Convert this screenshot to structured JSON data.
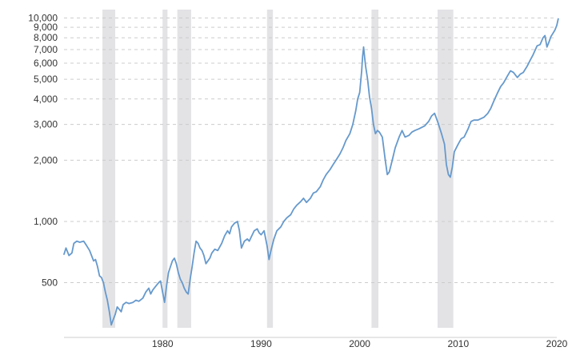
{
  "chart_data": {
    "type": "line",
    "title": "",
    "xlabel": "",
    "ylabel": "",
    "y_scale": "log",
    "xlim": [
      1970,
      2020
    ],
    "ylim": [
      300,
      11000
    ],
    "grid": true,
    "colors": {
      "line": "#6699cc",
      "recession": "#e3e3e6",
      "grid": "#cccccc",
      "axis": "#cccccc",
      "text": "#333333"
    },
    "y_ticks": [
      {
        "value": 500,
        "label": "500"
      },
      {
        "value": 1000,
        "label": "1,000"
      },
      {
        "value": 2000,
        "label": "2,000"
      },
      {
        "value": 3000,
        "label": "3,000"
      },
      {
        "value": 4000,
        "label": "4,000"
      },
      {
        "value": 5000,
        "label": "5,000"
      },
      {
        "value": 6000,
        "label": "6,000"
      },
      {
        "value": 7000,
        "label": "7,000"
      },
      {
        "value": 8000,
        "label": "8,000"
      },
      {
        "value": 9000,
        "label": "9,000"
      },
      {
        "value": 10000,
        "label": "10,000"
      }
    ],
    "x_ticks": [
      {
        "value": 1980,
        "label": "1980"
      },
      {
        "value": 1990,
        "label": "1990"
      },
      {
        "value": 2000,
        "label": "2000"
      },
      {
        "value": 2010,
        "label": "2010"
      },
      {
        "value": 2020,
        "label": "2020"
      }
    ],
    "recessions": [
      [
        1973.9,
        1975.2
      ],
      [
        1980.0,
        1980.5
      ],
      [
        1981.5,
        1982.9
      ],
      [
        1990.6,
        1991.2
      ],
      [
        2001.2,
        2001.9
      ],
      [
        2007.9,
        2009.5
      ]
    ],
    "series": [
      {
        "points": [
          [
            1970.0,
            690
          ],
          [
            1970.2,
            740
          ],
          [
            1970.5,
            680
          ],
          [
            1970.8,
            700
          ],
          [
            1971.0,
            780
          ],
          [
            1971.3,
            800
          ],
          [
            1971.6,
            790
          ],
          [
            1972.0,
            800
          ],
          [
            1972.3,
            760
          ],
          [
            1972.6,
            720
          ],
          [
            1973.0,
            640
          ],
          [
            1973.2,
            650
          ],
          [
            1973.4,
            600
          ],
          [
            1973.6,
            540
          ],
          [
            1973.8,
            530
          ],
          [
            1974.0,
            500
          ],
          [
            1974.2,
            450
          ],
          [
            1974.4,
            410
          ],
          [
            1974.6,
            360
          ],
          [
            1974.8,
            310
          ],
          [
            1975.0,
            330
          ],
          [
            1975.2,
            350
          ],
          [
            1975.4,
            380
          ],
          [
            1975.6,
            370
          ],
          [
            1975.8,
            360
          ],
          [
            1976.0,
            390
          ],
          [
            1976.3,
            400
          ],
          [
            1976.6,
            395
          ],
          [
            1977.0,
            400
          ],
          [
            1977.3,
            410
          ],
          [
            1977.6,
            405
          ],
          [
            1978.0,
            420
          ],
          [
            1978.3,
            450
          ],
          [
            1978.6,
            470
          ],
          [
            1978.8,
            440
          ],
          [
            1979.0,
            460
          ],
          [
            1979.3,
            480
          ],
          [
            1979.6,
            500
          ],
          [
            1979.8,
            510
          ],
          [
            1980.0,
            450
          ],
          [
            1980.2,
            400
          ],
          [
            1980.4,
            480
          ],
          [
            1980.6,
            560
          ],
          [
            1980.8,
            600
          ],
          [
            1981.0,
            640
          ],
          [
            1981.2,
            660
          ],
          [
            1981.4,
            620
          ],
          [
            1981.6,
            560
          ],
          [
            1981.8,
            520
          ],
          [
            1982.0,
            500
          ],
          [
            1982.2,
            470
          ],
          [
            1982.4,
            450
          ],
          [
            1982.6,
            440
          ],
          [
            1982.8,
            520
          ],
          [
            1983.0,
            600
          ],
          [
            1983.2,
            700
          ],
          [
            1983.4,
            800
          ],
          [
            1983.6,
            780
          ],
          [
            1983.8,
            740
          ],
          [
            1984.0,
            720
          ],
          [
            1984.2,
            680
          ],
          [
            1984.4,
            620
          ],
          [
            1984.6,
            640
          ],
          [
            1984.8,
            660
          ],
          [
            1985.0,
            700
          ],
          [
            1985.3,
            730
          ],
          [
            1985.6,
            720
          ],
          [
            1986.0,
            780
          ],
          [
            1986.3,
            850
          ],
          [
            1986.6,
            900
          ],
          [
            1986.8,
            870
          ],
          [
            1987.0,
            940
          ],
          [
            1987.3,
            980
          ],
          [
            1987.6,
            1000
          ],
          [
            1987.8,
            900
          ],
          [
            1988.0,
            740
          ],
          [
            1988.3,
            800
          ],
          [
            1988.6,
            820
          ],
          [
            1988.8,
            800
          ],
          [
            1989.0,
            840
          ],
          [
            1989.3,
            900
          ],
          [
            1989.6,
            920
          ],
          [
            1989.8,
            880
          ],
          [
            1990.0,
            860
          ],
          [
            1990.3,
            900
          ],
          [
            1990.6,
            760
          ],
          [
            1990.8,
            650
          ],
          [
            1991.0,
            720
          ],
          [
            1991.3,
            820
          ],
          [
            1991.6,
            900
          ],
          [
            1991.8,
            920
          ],
          [
            1992.0,
            940
          ],
          [
            1992.3,
            1000
          ],
          [
            1992.6,
            1040
          ],
          [
            1993.0,
            1080
          ],
          [
            1993.3,
            1150
          ],
          [
            1993.6,
            1200
          ],
          [
            1994.0,
            1250
          ],
          [
            1994.3,
            1300
          ],
          [
            1994.6,
            1240
          ],
          [
            1995.0,
            1300
          ],
          [
            1995.3,
            1380
          ],
          [
            1995.6,
            1400
          ],
          [
            1996.0,
            1480
          ],
          [
            1996.3,
            1600
          ],
          [
            1996.6,
            1700
          ],
          [
            1997.0,
            1800
          ],
          [
            1997.3,
            1900
          ],
          [
            1997.6,
            2000
          ],
          [
            1998.0,
            2150
          ],
          [
            1998.3,
            2300
          ],
          [
            1998.6,
            2500
          ],
          [
            1999.0,
            2700
          ],
          [
            1999.3,
            3000
          ],
          [
            1999.6,
            3500
          ],
          [
            1999.8,
            4000
          ],
          [
            2000.0,
            4300
          ],
          [
            2000.2,
            5500
          ],
          [
            2000.3,
            6500
          ],
          [
            2000.4,
            7200
          ],
          [
            2000.5,
            6400
          ],
          [
            2000.6,
            5800
          ],
          [
            2000.8,
            5000
          ],
          [
            2001.0,
            4100
          ],
          [
            2001.2,
            3600
          ],
          [
            2001.4,
            3000
          ],
          [
            2001.6,
            2700
          ],
          [
            2001.8,
            2800
          ],
          [
            2002.0,
            2750
          ],
          [
            2002.3,
            2600
          ],
          [
            2002.6,
            2000
          ],
          [
            2002.8,
            1700
          ],
          [
            2003.0,
            1750
          ],
          [
            2003.3,
            2000
          ],
          [
            2003.6,
            2300
          ],
          [
            2004.0,
            2600
          ],
          [
            2004.3,
            2800
          ],
          [
            2004.6,
            2600
          ],
          [
            2005.0,
            2650
          ],
          [
            2005.3,
            2750
          ],
          [
            2005.6,
            2800
          ],
          [
            2006.0,
            2850
          ],
          [
            2006.3,
            2900
          ],
          [
            2006.6,
            2950
          ],
          [
            2007.0,
            3100
          ],
          [
            2007.3,
            3300
          ],
          [
            2007.6,
            3400
          ],
          [
            2007.8,
            3200
          ],
          [
            2008.0,
            3000
          ],
          [
            2008.3,
            2700
          ],
          [
            2008.6,
            2400
          ],
          [
            2008.8,
            1900
          ],
          [
            2009.0,
            1700
          ],
          [
            2009.2,
            1650
          ],
          [
            2009.4,
            1850
          ],
          [
            2009.6,
            2200
          ],
          [
            2010.0,
            2400
          ],
          [
            2010.3,
            2550
          ],
          [
            2010.6,
            2600
          ],
          [
            2011.0,
            2850
          ],
          [
            2011.3,
            3100
          ],
          [
            2011.6,
            3150
          ],
          [
            2012.0,
            3150
          ],
          [
            2012.3,
            3200
          ],
          [
            2012.6,
            3250
          ],
          [
            2013.0,
            3400
          ],
          [
            2013.3,
            3600
          ],
          [
            2013.6,
            3900
          ],
          [
            2014.0,
            4300
          ],
          [
            2014.3,
            4600
          ],
          [
            2014.6,
            4800
          ],
          [
            2015.0,
            5200
          ],
          [
            2015.3,
            5500
          ],
          [
            2015.6,
            5400
          ],
          [
            2016.0,
            5100
          ],
          [
            2016.3,
            5300
          ],
          [
            2016.6,
            5400
          ],
          [
            2017.0,
            5800
          ],
          [
            2017.3,
            6200
          ],
          [
            2017.6,
            6600
          ],
          [
            2018.0,
            7300
          ],
          [
            2018.3,
            7400
          ],
          [
            2018.6,
            8000
          ],
          [
            2018.8,
            8200
          ],
          [
            2019.0,
            7200
          ],
          [
            2019.2,
            7600
          ],
          [
            2019.4,
            8100
          ],
          [
            2019.6,
            8400
          ],
          [
            2019.8,
            8700
          ],
          [
            2020.0,
            9200
          ],
          [
            2020.15,
            9900
          ]
        ]
      }
    ]
  }
}
